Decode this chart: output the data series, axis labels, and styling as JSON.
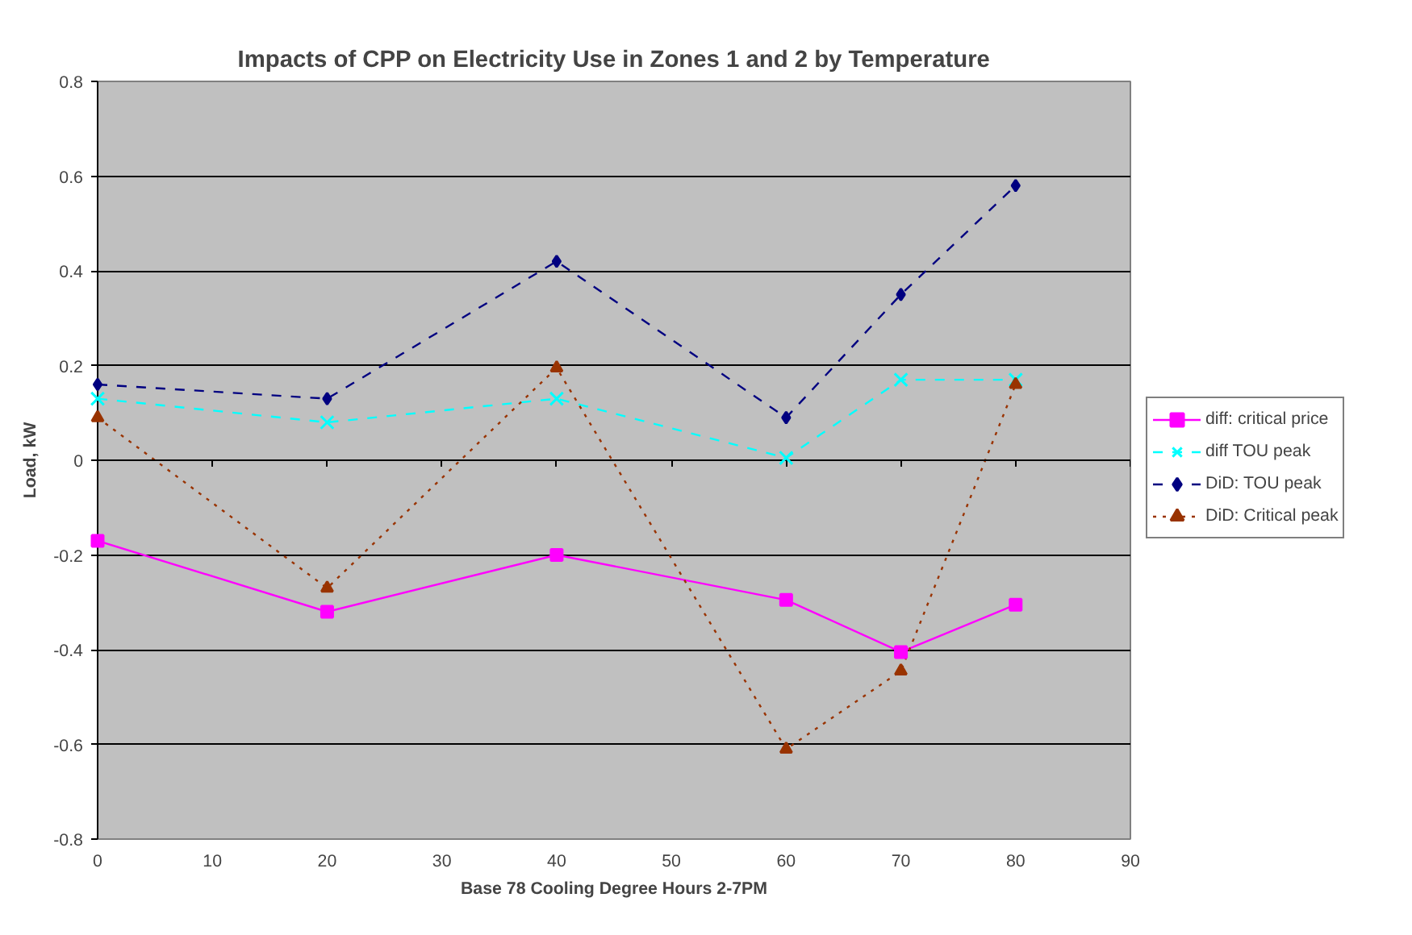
{
  "chart_data": {
    "type": "line",
    "title": "Impacts of CPP on Electricity Use in Zones 1 and 2 by Temperature",
    "xlabel": "Base 78 Cooling Degree Hours 2-7PM",
    "ylabel": "Load, kW",
    "x": [
      0,
      20,
      40,
      60,
      70,
      80
    ],
    "series": [
      {
        "name": "diff: critical price",
        "color": "#ff00ff",
        "marker": "square",
        "line_style": "solid",
        "values": [
          -0.17,
          -0.32,
          -0.2,
          -0.295,
          -0.405,
          -0.305
        ]
      },
      {
        "name": "diff TOU peak",
        "color": "#00ffff",
        "marker": "cross",
        "line_style": "dashed",
        "values": [
          0.13,
          0.08,
          0.13,
          0.005,
          0.17,
          0.17
        ]
      },
      {
        "name": "DiD: TOU peak",
        "color": "#000080",
        "marker": "diamond",
        "line_style": "dashed",
        "values": [
          0.16,
          0.13,
          0.42,
          0.09,
          0.35,
          0.58
        ]
      },
      {
        "name": "DiD: Critical peak",
        "color": "#993300",
        "marker": "triangle",
        "line_style": "dotted",
        "values": [
          0.09,
          -0.27,
          0.195,
          -0.61,
          -0.445,
          0.16
        ]
      }
    ],
    "xlim": [
      0,
      90
    ],
    "xticks": [
      0,
      10,
      20,
      30,
      40,
      50,
      60,
      70,
      80,
      90
    ],
    "ylim": [
      -0.8,
      0.8
    ],
    "yticks": [
      -0.8,
      -0.6,
      -0.4,
      -0.2,
      0,
      0.2,
      0.4,
      0.6,
      0.8
    ],
    "grid": "y",
    "legend": "right"
  }
}
